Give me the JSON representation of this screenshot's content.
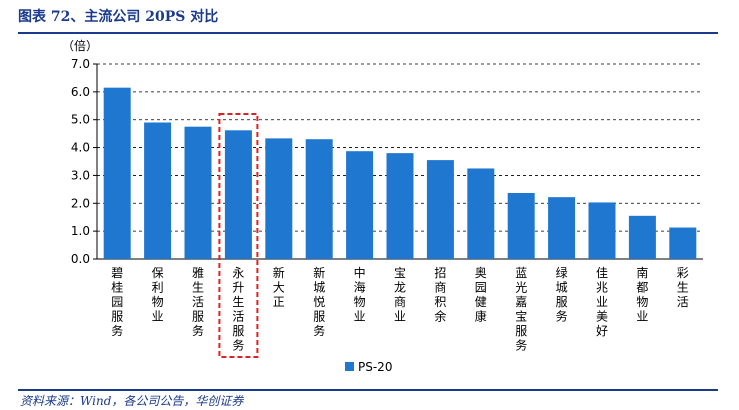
{
  "figure": {
    "title": "图表 72、主流公司 20PS 对比",
    "source": "资料来源：Wind，各公司公告，华创证券"
  },
  "colors": {
    "bar": "#1f77d0",
    "highlight": "#e02020",
    "title": "#1a3a8c"
  },
  "chart_data": {
    "type": "bar",
    "title": "",
    "ylabel": "（倍）",
    "xlabel": "",
    "ylim": [
      0,
      7
    ],
    "yticks": [
      "0.0",
      "1.0",
      "2.0",
      "3.0",
      "4.0",
      "5.0",
      "6.0",
      "7.0"
    ],
    "grid": true,
    "legend_position": "bottom",
    "categories": [
      "碧桂园服务",
      "保利物业",
      "雅生活服务",
      "永升生活服务",
      "新大正",
      "新城悦服务",
      "中海物业",
      "宝龙商业",
      "招商积余",
      "奥园健康",
      "蓝光嘉宝服务",
      "绿城服务",
      "佳兆业美好",
      "南都物业",
      "彩生活"
    ],
    "series": [
      {
        "name": "PS-20",
        "values": [
          6.15,
          4.9,
          4.75,
          4.62,
          4.33,
          4.3,
          3.87,
          3.8,
          3.55,
          3.25,
          2.37,
          2.22,
          2.03,
          1.55,
          1.13
        ]
      }
    ],
    "highlighted_category": "永升生活服务"
  }
}
